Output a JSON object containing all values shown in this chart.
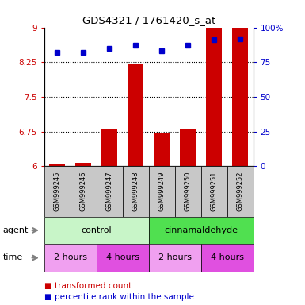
{
  "title": "GDS4321 / 1761420_s_at",
  "samples": [
    "GSM999245",
    "GSM999246",
    "GSM999247",
    "GSM999248",
    "GSM999249",
    "GSM999250",
    "GSM999251",
    "GSM999252"
  ],
  "red_values": [
    6.05,
    6.08,
    6.82,
    8.22,
    6.72,
    6.82,
    9.0,
    9.0
  ],
  "blue_values": [
    82,
    82,
    85,
    87,
    83,
    87,
    91,
    92
  ],
  "ylim_left": [
    6.0,
    9.0
  ],
  "ylim_right": [
    0,
    100
  ],
  "yticks_left": [
    6.0,
    6.75,
    7.5,
    8.25,
    9.0
  ],
  "ytick_labels_left": [
    "6",
    "6.75",
    "7.5",
    "8.25",
    "9"
  ],
  "yticks_right": [
    0,
    25,
    50,
    75,
    100
  ],
  "ytick_labels_right": [
    "0",
    "25",
    "50",
    "75",
    "100%"
  ],
  "dotted_lines": [
    6.75,
    7.5,
    8.25
  ],
  "agent_groups": [
    {
      "label": "control",
      "start": 0,
      "end": 4,
      "color": "#C8F5C8"
    },
    {
      "label": "cinnamaldehyde",
      "start": 4,
      "end": 8,
      "color": "#50E050"
    }
  ],
  "time_groups": [
    {
      "label": "2 hours",
      "start": 0,
      "end": 2,
      "color": "#F0A0F0"
    },
    {
      "label": "4 hours",
      "start": 2,
      "end": 4,
      "color": "#E050E0"
    },
    {
      "label": "2 hours",
      "start": 4,
      "end": 6,
      "color": "#F0A0F0"
    },
    {
      "label": "4 hours",
      "start": 6,
      "end": 8,
      "color": "#E050E0"
    }
  ],
  "legend_red": "transformed count",
  "legend_blue": "percentile rank within the sample",
  "bar_color": "#CC0000",
  "dot_color": "#0000CC",
  "bar_width": 0.6,
  "bg_color": "#FFFFFF",
  "sample_bg_color": "#C8C8C8",
  "left_axis_color": "#CC0000",
  "right_axis_color": "#0000CC"
}
